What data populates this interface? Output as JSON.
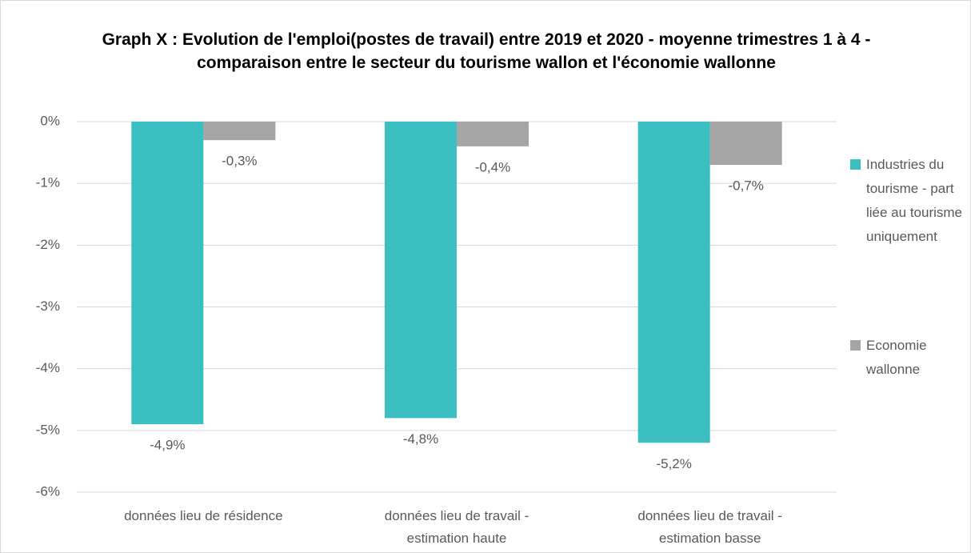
{
  "chart_data": {
    "type": "bar",
    "title": "Graph X : Evolution de l'emploi(postes de travail) entre 2019 et 2020 - moyenne trimestres 1 à 4 - comparaison entre le secteur du tourisme wallon et  l'économie wallonne",
    "categories": [
      "données lieu de résidence",
      "données lieu de travail - estimation haute",
      "données lieu de travail - estimation basse"
    ],
    "series": [
      {
        "name": "Industries du tourisme - part liée au tourisme uniquement",
        "color": "#3bbfc1",
        "values": [
          -4.9,
          -4.8,
          -5.2
        ],
        "value_labels": [
          "-4,9%",
          "-4,8%",
          "-5,2%"
        ]
      },
      {
        "name": "Economie wallonne",
        "color": "#a5a5a5",
        "values": [
          -0.3,
          -0.4,
          -0.7
        ],
        "value_labels": [
          "-0,3%",
          "-0,4%",
          "-0,7%"
        ]
      }
    ],
    "ylim": [
      -6,
      0
    ],
    "yticks": [
      {
        "value": 0,
        "label": "0%"
      },
      {
        "value": -1,
        "label": "-1%"
      },
      {
        "value": -2,
        "label": "-2%"
      },
      {
        "value": -3,
        "label": "-3%"
      },
      {
        "value": -4,
        "label": "-4%"
      },
      {
        "value": -5,
        "label": "-5%"
      },
      {
        "value": -6,
        "label": "-6%"
      }
    ],
    "grid": true,
    "legend": "right"
  }
}
